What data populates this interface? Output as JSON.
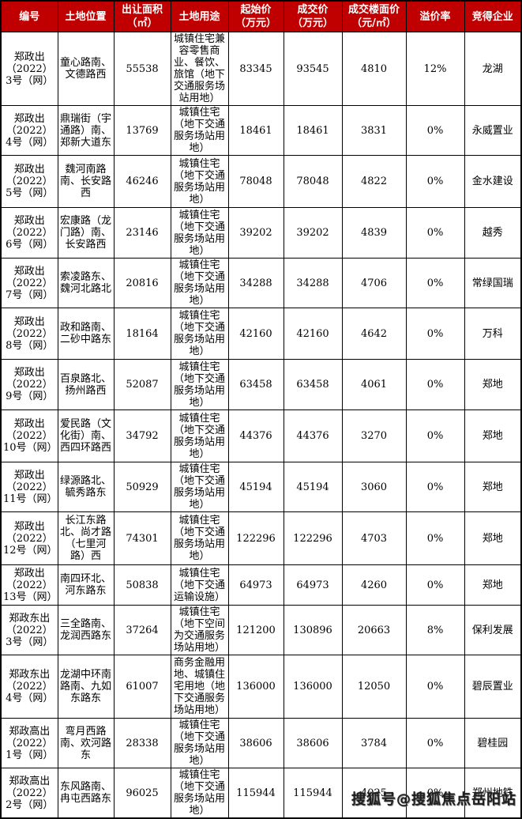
{
  "table": {
    "columns": [
      {
        "key": "id",
        "label": "编号"
      },
      {
        "key": "location",
        "label": "土地位置"
      },
      {
        "key": "area",
        "label": "出让面积\n（㎡）"
      },
      {
        "key": "use",
        "label": "土地用途"
      },
      {
        "key": "start_price",
        "label": "起始价\n（万元）"
      },
      {
        "key": "deal_price",
        "label": "成交价\n（万元）"
      },
      {
        "key": "floor_price",
        "label": "成交楼面价\n（元/㎡）"
      },
      {
        "key": "premium",
        "label": "溢价率"
      },
      {
        "key": "winner",
        "label": "竞得企业"
      }
    ],
    "rows": [
      {
        "id": "郑政出（2022）3号（网）",
        "location": "童心路南、文德路西",
        "area": "55538",
        "use": "城镇住宅兼容零售商业、餐饮、旅馆（地下交通服务场站用地）",
        "start_price": "83345",
        "deal_price": "93545",
        "floor_price": "4810",
        "premium": "12%",
        "winner": "龙湖"
      },
      {
        "id": "郑政出（2022）4号（网）",
        "location": "鼎瑞街（宇通路）南、郑新大道东",
        "area": "13769",
        "use": "城镇住宅（地下交通服务场站用地）",
        "start_price": "18461",
        "deal_price": "18461",
        "floor_price": "3831",
        "premium": "0%",
        "winner": "永威置业"
      },
      {
        "id": "郑政出（2022）5号（网）",
        "location": "魏河南路南、长安路西",
        "area": "46246",
        "use": "城镇住宅（地下交通服务场站用地）",
        "start_price": "78048",
        "deal_price": "78048",
        "floor_price": "4822",
        "premium": "0%",
        "winner": "金水建设"
      },
      {
        "id": "郑政出（2022）6号（网）",
        "location": "宏康路（龙门路）南、长安路西",
        "area": "23146",
        "use": "城镇住宅（地下交通服务场站用地）",
        "start_price": "39202",
        "deal_price": "39202",
        "floor_price": "4839",
        "premium": "0%",
        "winner": "越秀"
      },
      {
        "id": "郑政出（2022）7号（网）",
        "location": "索凌路东、魏河北路北",
        "area": "20816",
        "use": "城镇住宅（地下交通服务场站用地）",
        "start_price": "34288",
        "deal_price": "34288",
        "floor_price": "4706",
        "premium": "0%",
        "winner": "常绿国瑞"
      },
      {
        "id": "郑政出（2022）8号（网）",
        "location": "政和路南、二砂中路东",
        "area": "18164",
        "use": "城镇住宅（地下交通服务场站用地）",
        "start_price": "42160",
        "deal_price": "42160",
        "floor_price": "4642",
        "premium": "0%",
        "winner": "万科"
      },
      {
        "id": "郑政出（2022）9号（网）",
        "location": "百泉路北、扬州路西",
        "area": "52087",
        "use": "城镇住宅（地下交通服务场站用地）",
        "start_price": "63458",
        "deal_price": "63458",
        "floor_price": "4061",
        "premium": "0%",
        "winner": "郑地"
      },
      {
        "id": "郑政出（2022）10号（网）",
        "location": "爱民路（文化街）南、西四环路西",
        "area": "34792",
        "use": "城镇住宅（地下交通服务场站用地）",
        "start_price": "44376",
        "deal_price": "44376",
        "floor_price": "3270",
        "premium": "0%",
        "winner": "郑地"
      },
      {
        "id": "郑政出（2022）11号（网）",
        "location": "绿源路北、毓秀路东",
        "area": "50929",
        "use": "城镇住宅（地下交通服务场站用地）",
        "start_price": "45194",
        "deal_price": "45194",
        "floor_price": "3060",
        "premium": "0%",
        "winner": "郑地"
      },
      {
        "id": "郑政出（2022）12号（网）",
        "location": "长江东路北、尚才路（七里河路）西",
        "area": "74301",
        "use": "城镇住宅（地下交通服务场站用地）",
        "start_price": "122296",
        "deal_price": "122296",
        "floor_price": "4703",
        "premium": "0%",
        "winner": "郑地"
      },
      {
        "id": "郑政出（2022）13号（网）",
        "location": "南四环北、河东路东",
        "area": "50838",
        "use": "城镇住宅（地下交通运输设施）",
        "start_price": "64973",
        "deal_price": "64973",
        "floor_price": "4260",
        "premium": "0%",
        "winner": "郑地"
      },
      {
        "id": "郑政东出（2022）3号（网）",
        "location": "三全路南、龙润西路东",
        "area": "37264",
        "use": "城镇住宅（地下空间为交通服务场站用地）",
        "start_price": "121200",
        "deal_price": "130896",
        "floor_price": "20663",
        "premium": "8%",
        "winner": "保利发展"
      },
      {
        "id": "郑政东出（2022）4号（网）",
        "location": "龙湖中环南路南、九如东路东",
        "area": "61007",
        "use": "商务金融用地、城镇住宅用地（地下交通服务场站用地）",
        "start_price": "136000",
        "deal_price": "136000",
        "floor_price": "12050",
        "premium": "0%",
        "winner": "碧辰置业"
      },
      {
        "id": "郑政高出（2022）1号（网）",
        "location": "弯月西路南、欢河路东",
        "area": "28338",
        "use": "城镇住宅（地下交通服务场站用地）",
        "start_price": "38606",
        "deal_price": "38606",
        "floor_price": "3784",
        "premium": "0%",
        "winner": "碧桂园"
      },
      {
        "id": "郑政高出（2022）2号（网）",
        "location": "东风路南、冉屯西路东",
        "area": "96025",
        "use": "城镇住宅（地下交通服务场站用地）",
        "start_price": "115944",
        "deal_price": "115944",
        "floor_price": "4025",
        "premium": "0%",
        "winner": "郑州地铁"
      }
    ]
  },
  "watermark": {
    "text": "搜狐号@搜狐焦点岳阳站"
  },
  "colors": {
    "header_bg": "#c00000",
    "header_text": "#ffffff",
    "border": "#000000"
  }
}
